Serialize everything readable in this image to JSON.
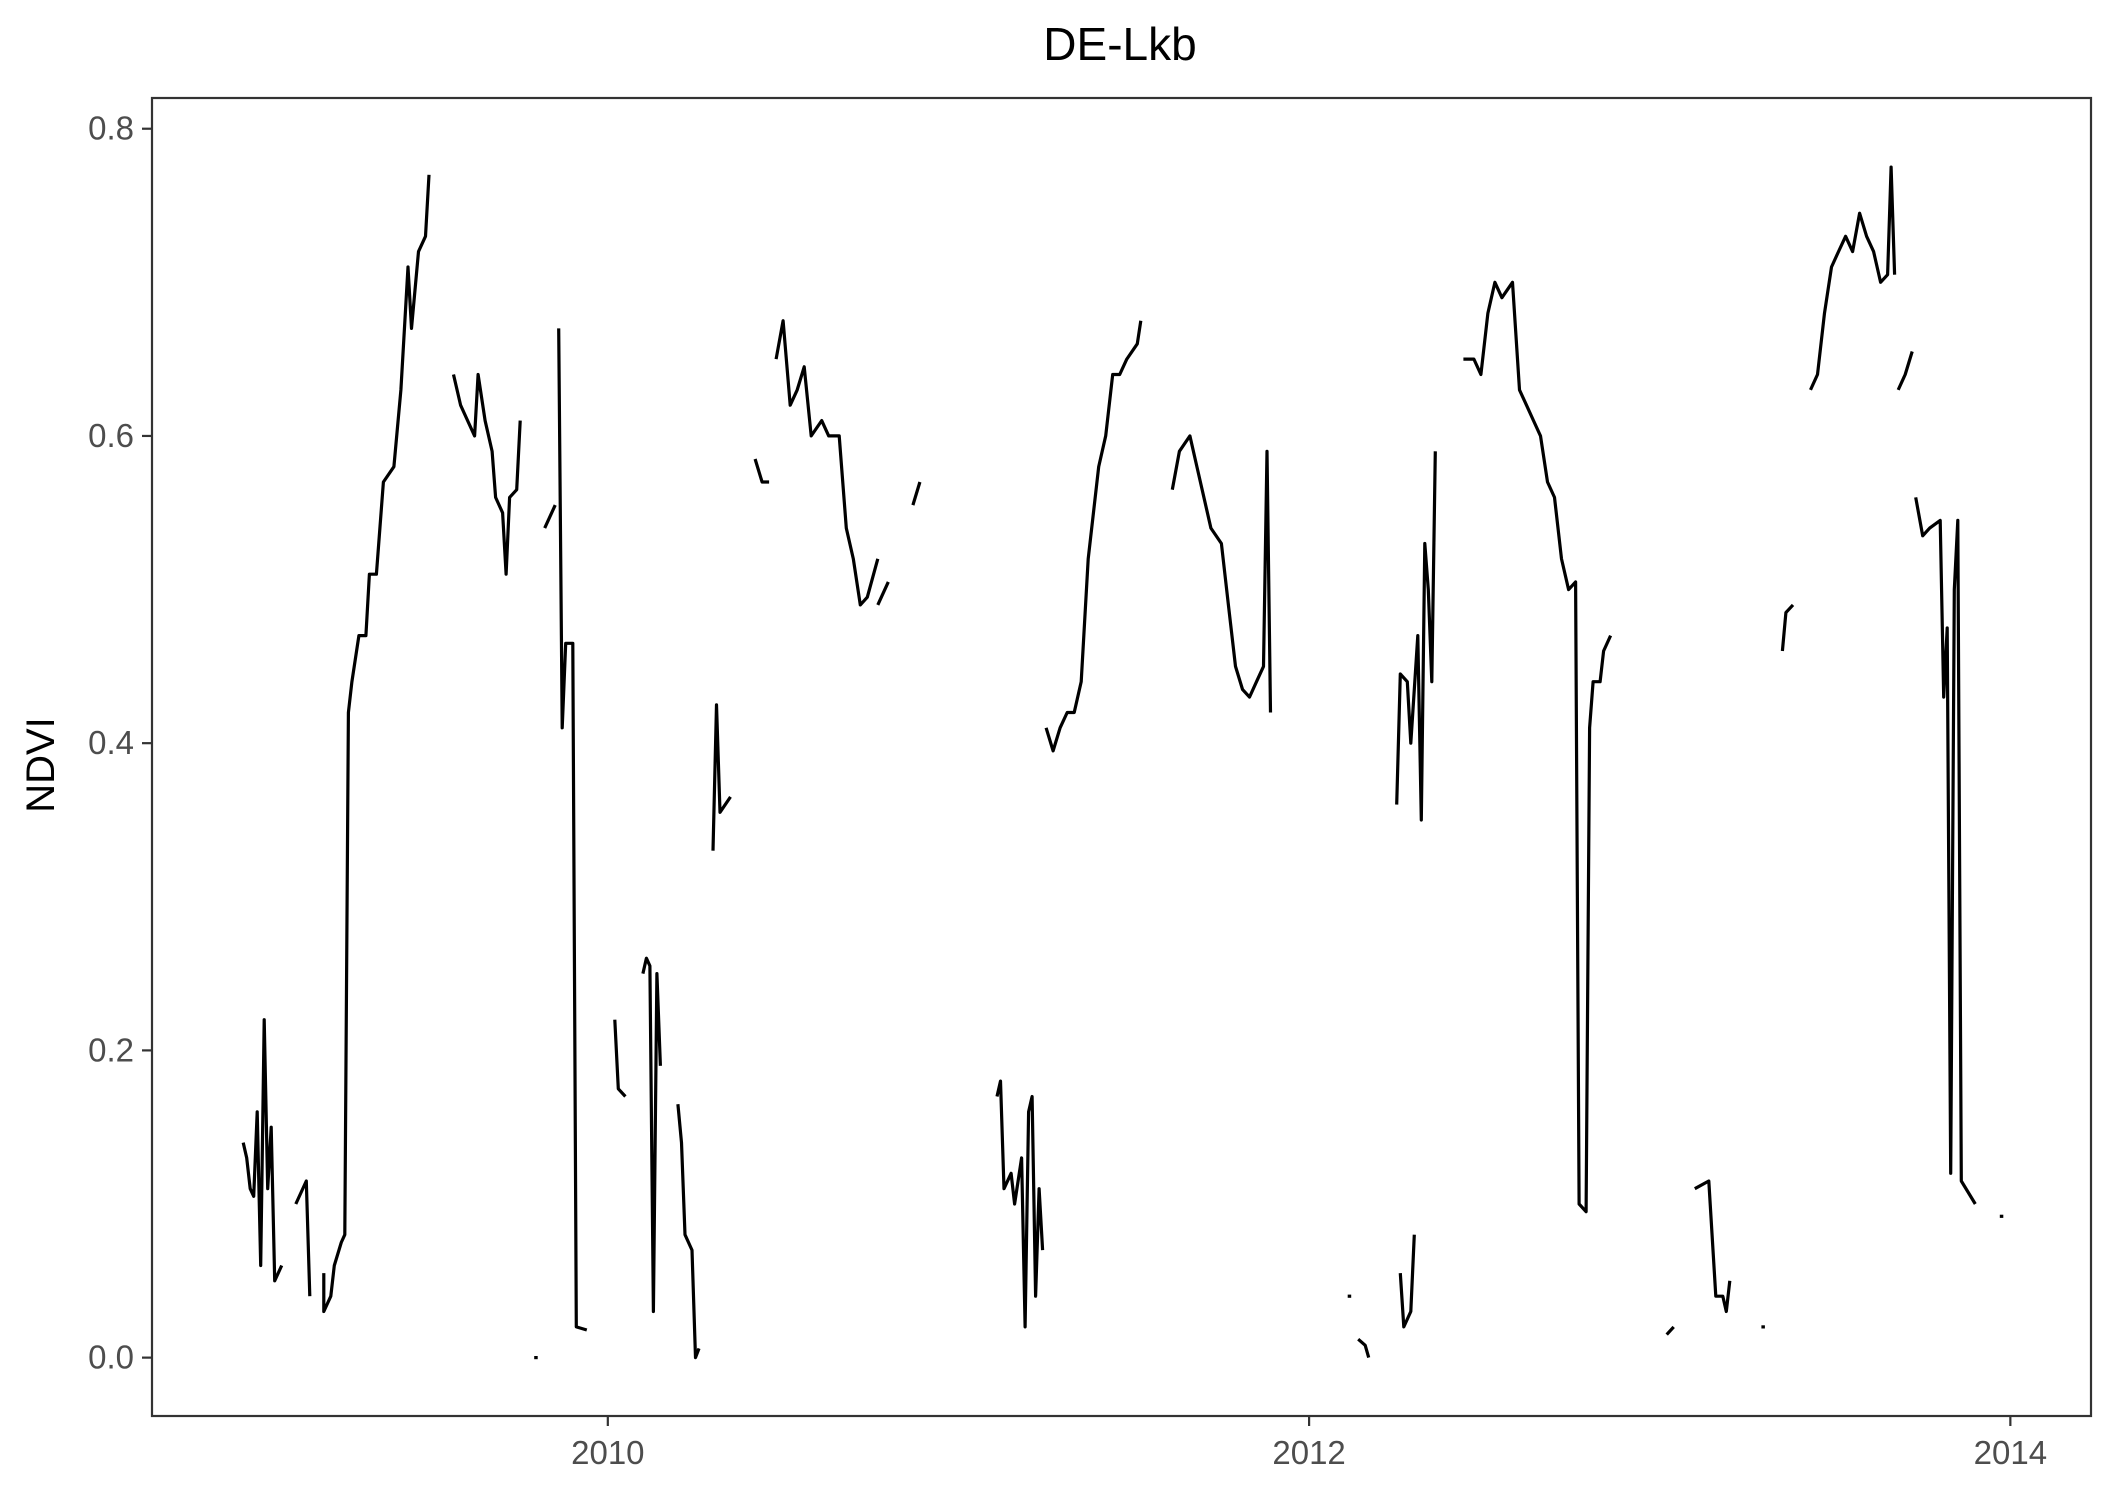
{
  "chart_data": {
    "type": "line",
    "title": "DE-Lkb",
    "xlabel": "",
    "ylabel": "NDVI",
    "xlim": [
      2008.7,
      2014.23
    ],
    "ylim": [
      -0.038,
      0.82
    ],
    "x_ticks": [
      2010,
      2012,
      2014
    ],
    "x_tick_labels": [
      "2010",
      "2012",
      "2014"
    ],
    "y_ticks": [
      0.0,
      0.2,
      0.4,
      0.6,
      0.8
    ],
    "y_tick_labels": [
      "0.0",
      "0.2",
      "0.4",
      "0.6",
      "0.8"
    ],
    "grid": false,
    "legend": "none",
    "line_color": "#000000",
    "segments": [
      [
        [
          2008.96,
          0.14
        ],
        [
          2008.97,
          0.13
        ],
        [
          2008.98,
          0.11
        ],
        [
          2008.99,
          0.105
        ],
        [
          2009.0,
          0.16
        ],
        [
          2009.01,
          0.06
        ],
        [
          2009.02,
          0.22
        ],
        [
          2009.03,
          0.11
        ],
        [
          2009.04,
          0.15
        ],
        [
          2009.05,
          0.05
        ],
        [
          2009.07,
          0.06
        ]
      ],
      [
        [
          2009.11,
          0.1
        ],
        [
          2009.14,
          0.115
        ],
        [
          2009.15,
          0.04
        ]
      ],
      [
        [
          2009.19,
          0.055
        ],
        [
          2009.19,
          0.03
        ],
        [
          2009.21,
          0.04
        ],
        [
          2009.22,
          0.06
        ],
        [
          2009.24,
          0.075
        ],
        [
          2009.25,
          0.08
        ],
        [
          2009.26,
          0.42
        ],
        [
          2009.27,
          0.44
        ],
        [
          2009.29,
          0.47
        ],
        [
          2009.31,
          0.47
        ],
        [
          2009.32,
          0.51
        ],
        [
          2009.34,
          0.51
        ],
        [
          2009.36,
          0.57
        ],
        [
          2009.39,
          0.58
        ],
        [
          2009.41,
          0.63
        ],
        [
          2009.43,
          0.71
        ],
        [
          2009.44,
          0.67
        ],
        [
          2009.46,
          0.72
        ],
        [
          2009.48,
          0.73
        ],
        [
          2009.49,
          0.77
        ]
      ],
      [
        [
          2009.56,
          0.64
        ],
        [
          2009.58,
          0.62
        ],
        [
          2009.6,
          0.61
        ],
        [
          2009.62,
          0.6
        ],
        [
          2009.63,
          0.64
        ],
        [
          2009.65,
          0.61
        ],
        [
          2009.67,
          0.59
        ],
        [
          2009.68,
          0.56
        ],
        [
          2009.7,
          0.55
        ],
        [
          2009.71,
          0.51
        ],
        [
          2009.72,
          0.56
        ],
        [
          2009.74,
          0.565
        ],
        [
          2009.75,
          0.61
        ]
      ],
      [
        [
          2009.79,
          0.0
        ],
        [
          2009.8,
          0.0
        ]
      ],
      [
        [
          2009.82,
          0.54
        ],
        [
          2009.85,
          0.555
        ]
      ],
      [
        [
          2009.86,
          0.67
        ],
        [
          2009.87,
          0.41
        ],
        [
          2009.88,
          0.465
        ],
        [
          2009.9,
          0.465
        ],
        [
          2009.91,
          0.02
        ],
        [
          2009.94,
          0.018
        ]
      ],
      [
        [
          2010.02,
          0.22
        ],
        [
          2010.03,
          0.175
        ],
        [
          2010.05,
          0.17
        ]
      ],
      [
        [
          2010.1,
          0.25
        ],
        [
          2010.11,
          0.26
        ],
        [
          2010.12,
          0.255
        ],
        [
          2010.13,
          0.03
        ],
        [
          2010.14,
          0.25
        ],
        [
          2010.15,
          0.19
        ]
      ],
      [
        [
          2010.2,
          0.165
        ],
        [
          2010.21,
          0.14
        ],
        [
          2010.22,
          0.08
        ],
        [
          2010.24,
          0.07
        ],
        [
          2010.25,
          0.0
        ],
        [
          2010.26,
          0.006
        ]
      ],
      [
        [
          2010.3,
          0.33
        ],
        [
          2010.31,
          0.425
        ],
        [
          2010.32,
          0.355
        ],
        [
          2010.35,
          0.365
        ]
      ],
      [
        [
          2010.42,
          0.585
        ],
        [
          2010.44,
          0.57
        ],
        [
          2010.46,
          0.57
        ]
      ],
      [
        [
          2010.48,
          0.65
        ],
        [
          2010.5,
          0.675
        ],
        [
          2010.52,
          0.62
        ],
        [
          2010.54,
          0.63
        ],
        [
          2010.56,
          0.645
        ],
        [
          2010.58,
          0.6
        ],
        [
          2010.61,
          0.61
        ],
        [
          2010.63,
          0.6
        ],
        [
          2010.66,
          0.6
        ],
        [
          2010.68,
          0.54
        ],
        [
          2010.7,
          0.52
        ],
        [
          2010.72,
          0.49
        ],
        [
          2010.74,
          0.495
        ],
        [
          2010.77,
          0.52
        ]
      ],
      [
        [
          2010.77,
          0.49
        ],
        [
          2010.8,
          0.505
        ]
      ],
      [
        [
          2010.87,
          0.555
        ],
        [
          2010.89,
          0.57
        ]
      ],
      [
        [
          2011.11,
          0.17
        ],
        [
          2011.12,
          0.18
        ],
        [
          2011.13,
          0.11
        ],
        [
          2011.15,
          0.12
        ],
        [
          2011.16,
          0.1
        ],
        [
          2011.18,
          0.13
        ],
        [
          2011.19,
          0.02
        ],
        [
          2011.2,
          0.16
        ],
        [
          2011.21,
          0.17
        ],
        [
          2011.22,
          0.04
        ],
        [
          2011.23,
          0.11
        ],
        [
          2011.24,
          0.07
        ]
      ],
      [
        [
          2011.25,
          0.41
        ],
        [
          2011.27,
          0.395
        ],
        [
          2011.29,
          0.41
        ],
        [
          2011.31,
          0.42
        ],
        [
          2011.33,
          0.42
        ],
        [
          2011.35,
          0.44
        ],
        [
          2011.37,
          0.52
        ],
        [
          2011.4,
          0.58
        ],
        [
          2011.42,
          0.6
        ],
        [
          2011.44,
          0.64
        ],
        [
          2011.46,
          0.64
        ],
        [
          2011.48,
          0.65
        ],
        [
          2011.51,
          0.66
        ],
        [
          2011.52,
          0.675
        ]
      ],
      [
        [
          2011.61,
          0.565
        ],
        [
          2011.63,
          0.59
        ],
        [
          2011.66,
          0.6
        ],
        [
          2011.68,
          0.58
        ],
        [
          2011.7,
          0.56
        ],
        [
          2011.72,
          0.54
        ],
        [
          2011.75,
          0.53
        ],
        [
          2011.77,
          0.49
        ],
        [
          2011.79,
          0.45
        ],
        [
          2011.81,
          0.435
        ],
        [
          2011.83,
          0.43
        ],
        [
          2011.85,
          0.44
        ],
        [
          2011.87,
          0.45
        ],
        [
          2011.88,
          0.59
        ],
        [
          2011.89,
          0.42
        ]
      ],
      [
        [
          2012.11,
          0.04
        ],
        [
          2012.12,
          0.04
        ]
      ],
      [
        [
          2012.14,
          0.012
        ],
        [
          2012.16,
          0.008
        ],
        [
          2012.17,
          0.0
        ]
      ],
      [
        [
          2012.25,
          0.36
        ],
        [
          2012.26,
          0.445
        ],
        [
          2012.28,
          0.44
        ],
        [
          2012.29,
          0.4
        ],
        [
          2012.31,
          0.47
        ],
        [
          2012.32,
          0.35
        ],
        [
          2012.33,
          0.53
        ],
        [
          2012.34,
          0.5
        ],
        [
          2012.35,
          0.44
        ],
        [
          2012.36,
          0.59
        ]
      ],
      [
        [
          2012.26,
          0.055
        ],
        [
          2012.27,
          0.02
        ],
        [
          2012.29,
          0.03
        ],
        [
          2012.3,
          0.08
        ]
      ],
      [
        [
          2012.44,
          0.65
        ],
        [
          2012.47,
          0.65
        ],
        [
          2012.49,
          0.64
        ],
        [
          2012.51,
          0.68
        ],
        [
          2012.53,
          0.7
        ],
        [
          2012.55,
          0.69
        ],
        [
          2012.58,
          0.7
        ],
        [
          2012.6,
          0.63
        ],
        [
          2012.62,
          0.62
        ],
        [
          2012.64,
          0.61
        ],
        [
          2012.66,
          0.6
        ],
        [
          2012.68,
          0.57
        ],
        [
          2012.7,
          0.56
        ],
        [
          2012.72,
          0.52
        ],
        [
          2012.74,
          0.5
        ],
        [
          2012.76,
          0.505
        ],
        [
          2012.77,
          0.1
        ],
        [
          2012.79,
          0.095
        ],
        [
          2012.8,
          0.41
        ],
        [
          2012.81,
          0.44
        ],
        [
          2012.83,
          0.44
        ],
        [
          2012.84,
          0.46
        ],
        [
          2012.86,
          0.47
        ]
      ],
      [
        [
          2013.02,
          0.015
        ],
        [
          2013.04,
          0.02
        ]
      ],
      [
        [
          2013.1,
          0.11
        ],
        [
          2013.14,
          0.115
        ],
        [
          2013.16,
          0.04
        ],
        [
          2013.18,
          0.04
        ],
        [
          2013.19,
          0.03
        ],
        [
          2013.2,
          0.05
        ]
      ],
      [
        [
          2013.29,
          0.02
        ],
        [
          2013.3,
          0.02
        ]
      ],
      [
        [
          2013.35,
          0.46
        ],
        [
          2013.36,
          0.485
        ],
        [
          2013.38,
          0.49
        ]
      ],
      [
        [
          2013.43,
          0.63
        ],
        [
          2013.45,
          0.64
        ],
        [
          2013.47,
          0.68
        ],
        [
          2013.49,
          0.71
        ],
        [
          2013.51,
          0.72
        ],
        [
          2013.53,
          0.73
        ],
        [
          2013.55,
          0.72
        ],
        [
          2013.57,
          0.745
        ],
        [
          2013.59,
          0.73
        ],
        [
          2013.61,
          0.72
        ],
        [
          2013.63,
          0.7
        ],
        [
          2013.65,
          0.705
        ],
        [
          2013.66,
          0.775
        ],
        [
          2013.67,
          0.705
        ]
      ],
      [
        [
          2013.68,
          0.63
        ],
        [
          2013.7,
          0.64
        ],
        [
          2013.72,
          0.655
        ]
      ],
      [
        [
          2013.73,
          0.56
        ],
        [
          2013.75,
          0.535
        ],
        [
          2013.77,
          0.54
        ],
        [
          2013.8,
          0.545
        ],
        [
          2013.81,
          0.43
        ],
        [
          2013.82,
          0.475
        ],
        [
          2013.83,
          0.12
        ],
        [
          2013.84,
          0.5
        ],
        [
          2013.85,
          0.545
        ],
        [
          2013.86,
          0.115
        ],
        [
          2013.9,
          0.1
        ]
      ],
      [
        [
          2013.97,
          0.092
        ],
        [
          2013.98,
          0.092
        ]
      ]
    ]
  }
}
